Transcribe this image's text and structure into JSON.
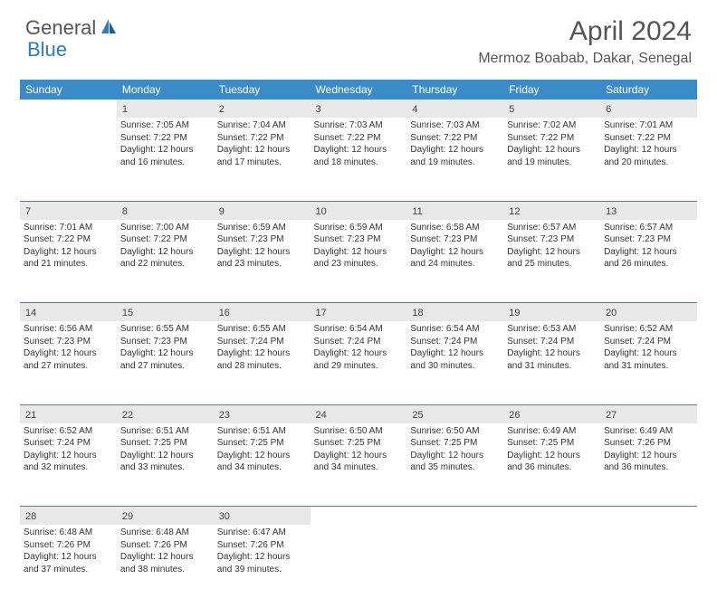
{
  "logo": {
    "text1": "General",
    "text2": "Blue"
  },
  "title": "April 2024",
  "location": "Mermoz Boabab, Dakar, Senegal",
  "colors": {
    "header_bg": "#3b8bc9",
    "header_text": "#ffffff",
    "daynum_bg": "#e8e8e8",
    "border": "#5a7a99",
    "logo_blue": "#2f7bbf",
    "text": "#333333"
  },
  "weekdays": [
    "Sunday",
    "Monday",
    "Tuesday",
    "Wednesday",
    "Thursday",
    "Friday",
    "Saturday"
  ],
  "weeks": [
    {
      "nums": [
        "",
        "1",
        "2",
        "3",
        "4",
        "5",
        "6"
      ],
      "cells": [
        null,
        {
          "sunrise": "Sunrise: 7:05 AM",
          "sunset": "Sunset: 7:22 PM",
          "day1": "Daylight: 12 hours",
          "day2": "and 16 minutes."
        },
        {
          "sunrise": "Sunrise: 7:04 AM",
          "sunset": "Sunset: 7:22 PM",
          "day1": "Daylight: 12 hours",
          "day2": "and 17 minutes."
        },
        {
          "sunrise": "Sunrise: 7:03 AM",
          "sunset": "Sunset: 7:22 PM",
          "day1": "Daylight: 12 hours",
          "day2": "and 18 minutes."
        },
        {
          "sunrise": "Sunrise: 7:03 AM",
          "sunset": "Sunset: 7:22 PM",
          "day1": "Daylight: 12 hours",
          "day2": "and 19 minutes."
        },
        {
          "sunrise": "Sunrise: 7:02 AM",
          "sunset": "Sunset: 7:22 PM",
          "day1": "Daylight: 12 hours",
          "day2": "and 19 minutes."
        },
        {
          "sunrise": "Sunrise: 7:01 AM",
          "sunset": "Sunset: 7:22 PM",
          "day1": "Daylight: 12 hours",
          "day2": "and 20 minutes."
        }
      ]
    },
    {
      "nums": [
        "7",
        "8",
        "9",
        "10",
        "11",
        "12",
        "13"
      ],
      "cells": [
        {
          "sunrise": "Sunrise: 7:01 AM",
          "sunset": "Sunset: 7:22 PM",
          "day1": "Daylight: 12 hours",
          "day2": "and 21 minutes."
        },
        {
          "sunrise": "Sunrise: 7:00 AM",
          "sunset": "Sunset: 7:22 PM",
          "day1": "Daylight: 12 hours",
          "day2": "and 22 minutes."
        },
        {
          "sunrise": "Sunrise: 6:59 AM",
          "sunset": "Sunset: 7:23 PM",
          "day1": "Daylight: 12 hours",
          "day2": "and 23 minutes."
        },
        {
          "sunrise": "Sunrise: 6:59 AM",
          "sunset": "Sunset: 7:23 PM",
          "day1": "Daylight: 12 hours",
          "day2": "and 23 minutes."
        },
        {
          "sunrise": "Sunrise: 6:58 AM",
          "sunset": "Sunset: 7:23 PM",
          "day1": "Daylight: 12 hours",
          "day2": "and 24 minutes."
        },
        {
          "sunrise": "Sunrise: 6:57 AM",
          "sunset": "Sunset: 7:23 PM",
          "day1": "Daylight: 12 hours",
          "day2": "and 25 minutes."
        },
        {
          "sunrise": "Sunrise: 6:57 AM",
          "sunset": "Sunset: 7:23 PM",
          "day1": "Daylight: 12 hours",
          "day2": "and 26 minutes."
        }
      ]
    },
    {
      "nums": [
        "14",
        "15",
        "16",
        "17",
        "18",
        "19",
        "20"
      ],
      "cells": [
        {
          "sunrise": "Sunrise: 6:56 AM",
          "sunset": "Sunset: 7:23 PM",
          "day1": "Daylight: 12 hours",
          "day2": "and 27 minutes."
        },
        {
          "sunrise": "Sunrise: 6:55 AM",
          "sunset": "Sunset: 7:23 PM",
          "day1": "Daylight: 12 hours",
          "day2": "and 27 minutes."
        },
        {
          "sunrise": "Sunrise: 6:55 AM",
          "sunset": "Sunset: 7:24 PM",
          "day1": "Daylight: 12 hours",
          "day2": "and 28 minutes."
        },
        {
          "sunrise": "Sunrise: 6:54 AM",
          "sunset": "Sunset: 7:24 PM",
          "day1": "Daylight: 12 hours",
          "day2": "and 29 minutes."
        },
        {
          "sunrise": "Sunrise: 6:54 AM",
          "sunset": "Sunset: 7:24 PM",
          "day1": "Daylight: 12 hours",
          "day2": "and 30 minutes."
        },
        {
          "sunrise": "Sunrise: 6:53 AM",
          "sunset": "Sunset: 7:24 PM",
          "day1": "Daylight: 12 hours",
          "day2": "and 31 minutes."
        },
        {
          "sunrise": "Sunrise: 6:52 AM",
          "sunset": "Sunset: 7:24 PM",
          "day1": "Daylight: 12 hours",
          "day2": "and 31 minutes."
        }
      ]
    },
    {
      "nums": [
        "21",
        "22",
        "23",
        "24",
        "25",
        "26",
        "27"
      ],
      "cells": [
        {
          "sunrise": "Sunrise: 6:52 AM",
          "sunset": "Sunset: 7:24 PM",
          "day1": "Daylight: 12 hours",
          "day2": "and 32 minutes."
        },
        {
          "sunrise": "Sunrise: 6:51 AM",
          "sunset": "Sunset: 7:25 PM",
          "day1": "Daylight: 12 hours",
          "day2": "and 33 minutes."
        },
        {
          "sunrise": "Sunrise: 6:51 AM",
          "sunset": "Sunset: 7:25 PM",
          "day1": "Daylight: 12 hours",
          "day2": "and 34 minutes."
        },
        {
          "sunrise": "Sunrise: 6:50 AM",
          "sunset": "Sunset: 7:25 PM",
          "day1": "Daylight: 12 hours",
          "day2": "and 34 minutes."
        },
        {
          "sunrise": "Sunrise: 6:50 AM",
          "sunset": "Sunset: 7:25 PM",
          "day1": "Daylight: 12 hours",
          "day2": "and 35 minutes."
        },
        {
          "sunrise": "Sunrise: 6:49 AM",
          "sunset": "Sunset: 7:25 PM",
          "day1": "Daylight: 12 hours",
          "day2": "and 36 minutes."
        },
        {
          "sunrise": "Sunrise: 6:49 AM",
          "sunset": "Sunset: 7:26 PM",
          "day1": "Daylight: 12 hours",
          "day2": "and 36 minutes."
        }
      ]
    },
    {
      "nums": [
        "28",
        "29",
        "30",
        "",
        "",
        "",
        ""
      ],
      "cells": [
        {
          "sunrise": "Sunrise: 6:48 AM",
          "sunset": "Sunset: 7:26 PM",
          "day1": "Daylight: 12 hours",
          "day2": "and 37 minutes."
        },
        {
          "sunrise": "Sunrise: 6:48 AM",
          "sunset": "Sunset: 7:26 PM",
          "day1": "Daylight: 12 hours",
          "day2": "and 38 minutes."
        },
        {
          "sunrise": "Sunrise: 6:47 AM",
          "sunset": "Sunset: 7:26 PM",
          "day1": "Daylight: 12 hours",
          "day2": "and 39 minutes."
        },
        null,
        null,
        null,
        null
      ]
    }
  ]
}
